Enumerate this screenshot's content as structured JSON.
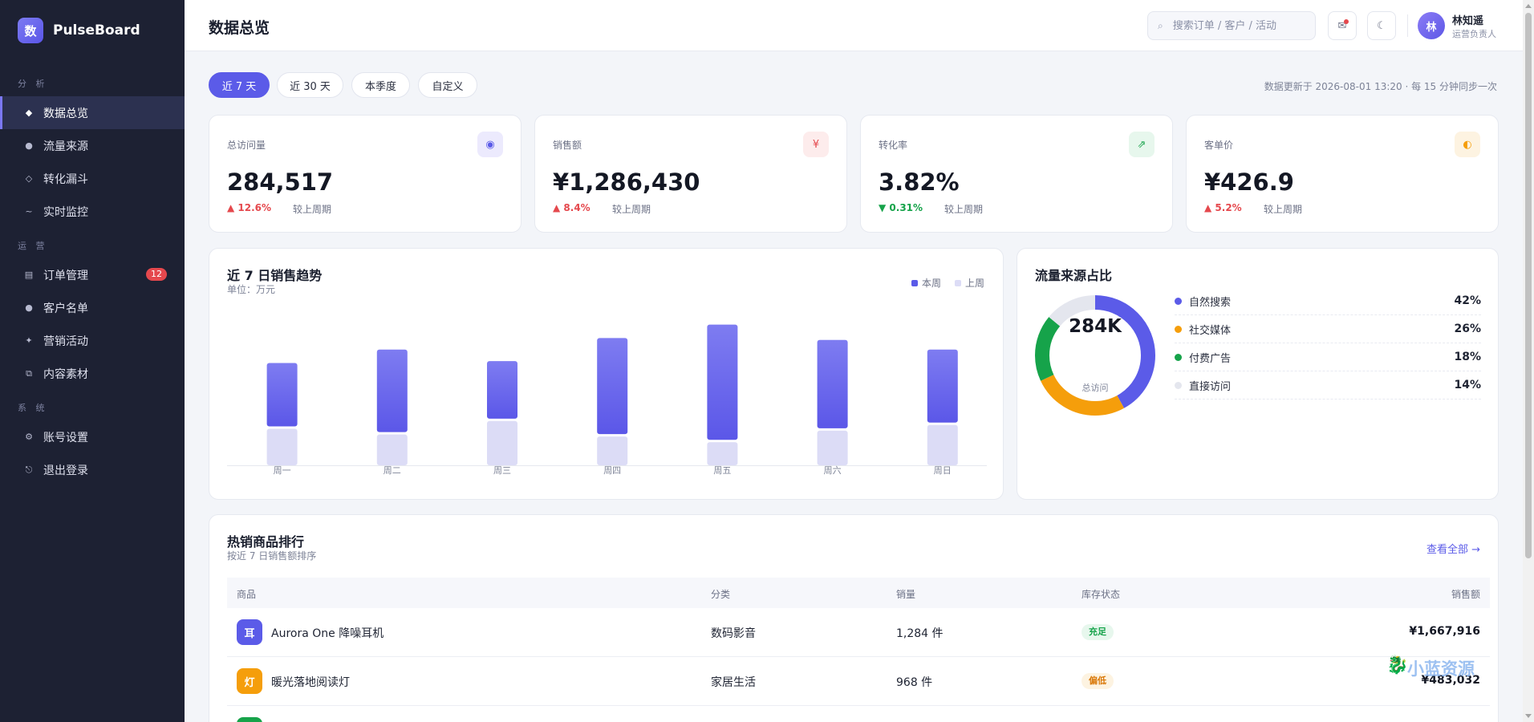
{
  "brand": {
    "logo_char": "数",
    "name": "PulseBoard"
  },
  "sidebar": {
    "sections": [
      {
        "title": "分 析",
        "items": [
          {
            "label": "数据总览",
            "icon": "◆",
            "active": true
          },
          {
            "label": "流量来源",
            "icon": "●"
          },
          {
            "label": "转化漏斗",
            "icon": "◇"
          },
          {
            "label": "实时监控",
            "icon": "~"
          }
        ]
      },
      {
        "title": "运 营",
        "items": [
          {
            "label": "订单管理",
            "icon": "▤",
            "badge": "12"
          },
          {
            "label": "客户名单",
            "icon": "●"
          },
          {
            "label": "营销活动",
            "icon": "✦"
          },
          {
            "label": "内容素材",
            "icon": "⧉"
          }
        ]
      },
      {
        "title": "系 统",
        "items": [
          {
            "label": "账号设置",
            "icon": "⚙"
          },
          {
            "label": "退出登录",
            "icon": "⎋"
          }
        ]
      }
    ]
  },
  "header": {
    "title": "数据总览",
    "search_placeholder": "搜索订单 / 客户 / 活动",
    "user_avatar": "林",
    "user_name": "林知遥",
    "user_role": "运营负责人"
  },
  "filters": {
    "ranges": [
      "近 7 天",
      "近 30 天",
      "本季度",
      "自定义"
    ],
    "active_index": 0,
    "update_note": "数据更新于 2026-08-01 13:20 · 每 15 分钟同步一次"
  },
  "kpis": [
    {
      "label": "总访问量",
      "value": "284,517",
      "delta": "▲ 12.6%",
      "direction": "up",
      "compare": "较上周期",
      "icon": "◉",
      "icon_color": "#5b5be8",
      "icon_bg": "#eceafd"
    },
    {
      "label": "销售额",
      "value": "¥1,286,430",
      "delta": "▲ 8.4%",
      "direction": "up",
      "compare": "较上周期",
      "icon": "¥",
      "icon_color": "#e5484d",
      "icon_bg": "#fdecec"
    },
    {
      "label": "转化率",
      "value": "3.82%",
      "delta": "▼ 0.31%",
      "direction": "down",
      "compare": "较上周期",
      "icon": "⇗",
      "icon_color": "#16a34a",
      "icon_bg": "#e7f7ed"
    },
    {
      "label": "客单价",
      "value": "¥426.9",
      "delta": "▲ 5.2%",
      "direction": "up",
      "compare": "较上周期",
      "icon": "◐",
      "icon_color": "#f59e0b",
      "icon_bg": "#fdf3e1"
    }
  ],
  "sales_chart": {
    "title": "近 7 日销售趋势",
    "subtitle": "单位：万元",
    "legend": [
      {
        "name": "本周",
        "color": "#5b5be8"
      },
      {
        "name": "上周",
        "color": "#dcdcf6"
      }
    ]
  },
  "traffic_chart": {
    "title": "流量来源占比",
    "center_value": "284K",
    "center_label": "总访问"
  },
  "chart_data": [
    {
      "type": "bar",
      "title": "近 7 日销售趋势",
      "categories": [
        "周一",
        "周二",
        "周三",
        "周四",
        "周五",
        "周六",
        "周日"
      ],
      "series": [
        {
          "name": "本周",
          "values": [
            16.5,
            21.5,
            15,
            25,
            30,
            23,
            19
          ]
        },
        {
          "name": "上周",
          "values": [
            9.5,
            8,
            11.5,
            7.5,
            6,
            9,
            10.5
          ]
        }
      ],
      "stacked": true,
      "ylim": [
        0,
        38
      ]
    },
    {
      "type": "pie",
      "title": "流量来源占比",
      "categories": [
        "自然搜索",
        "社交媒体",
        "付费广告",
        "直接访问"
      ],
      "values": [
        42,
        26,
        18,
        14
      ],
      "display": [
        "42%",
        "26%",
        "18%",
        "14%"
      ],
      "colors": [
        "#5b5be8",
        "#f59e0b",
        "#16a34a",
        "#e4e6ee"
      ]
    }
  ],
  "products": {
    "title": "热销商品排行",
    "subtitle": "按近 7 日销售额排序",
    "view_all": "查看全部 →",
    "columns": [
      "商品",
      "分类",
      "销量",
      "库存状态",
      "销售额"
    ],
    "rows": [
      {
        "icon": "耳",
        "icon_color": "#5b5be8",
        "name": "Aurora One 降噪耳机",
        "category": "数码影音",
        "sales": "1,284 件",
        "stock": "充足",
        "stock_color": "#16a34a",
        "stock_bg": "#e7f7ed",
        "amount": "¥1,667,916"
      },
      {
        "icon": "灯",
        "icon_color": "#f59e0b",
        "name": "暖光落地阅读灯",
        "category": "家居生活",
        "sales": "968 件",
        "stock": "偏低",
        "stock_color": "#d97706",
        "stock_bg": "#fdf3e1",
        "amount": "¥483,032"
      },
      {
        "icon": "",
        "icon_color": "#16a34a",
        "name": "",
        "category": "",
        "sales": "",
        "stock": "",
        "stock_color": "#16a34a",
        "stock_bg": "#e7f7ed",
        "amount": ""
      }
    ]
  },
  "watermark": "小蓝资源"
}
